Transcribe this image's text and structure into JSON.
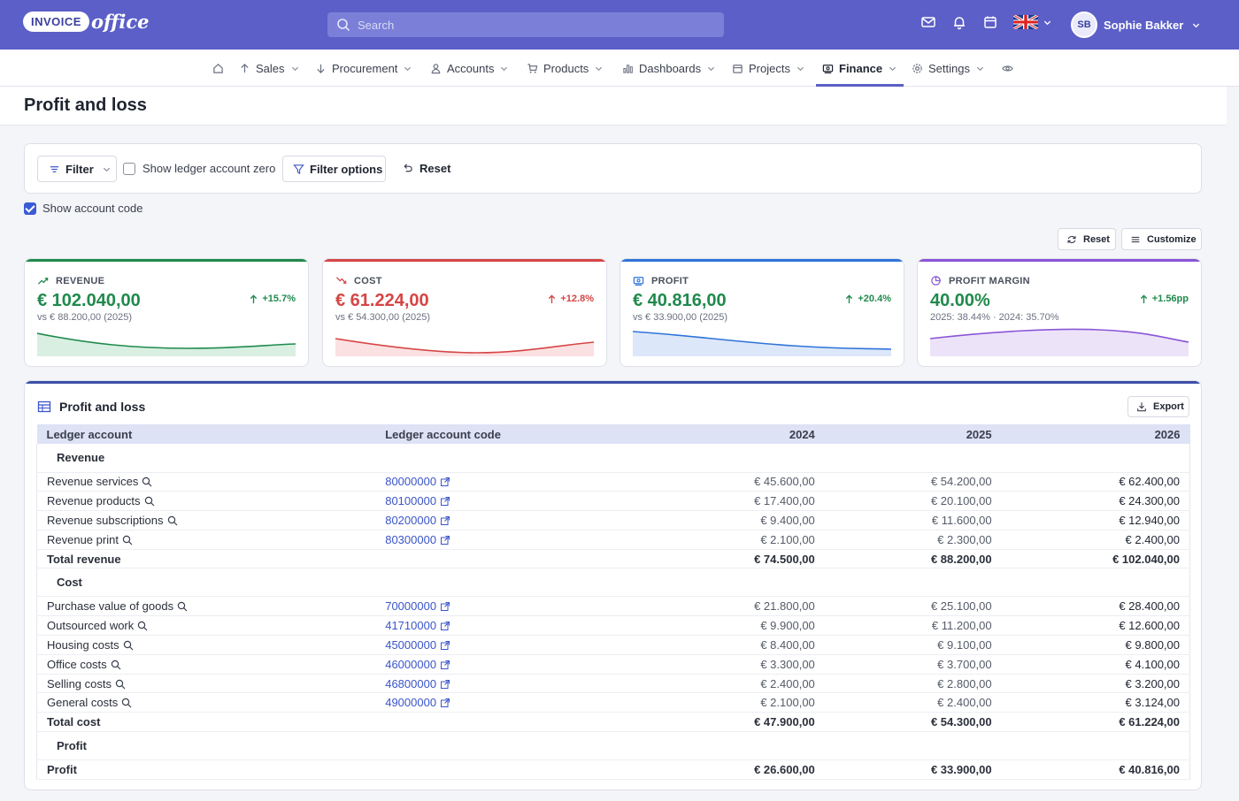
{
  "app": {
    "logo_text": "INVOICE",
    "logo_suffix": "office"
  },
  "search": {
    "placeholder": "Search"
  },
  "user": {
    "initials": "SB",
    "name": "Sophie Bakker"
  },
  "nav": {
    "items": [
      {
        "label": "Sales"
      },
      {
        "label": "Procurement"
      },
      {
        "label": "Accounts"
      },
      {
        "label": "Products"
      },
      {
        "label": "Dashboards"
      },
      {
        "label": "Projects"
      },
      {
        "label": "Finance"
      },
      {
        "label": "Settings"
      }
    ],
    "active": "Finance"
  },
  "page": {
    "title": "Profit and loss"
  },
  "filters": {
    "filter_label": "Filter",
    "show_zero_label": "Show ledger account zero",
    "show_zero_checked": false,
    "filter_options_label": "Filter options",
    "reset_label": "Reset",
    "show_code_label": "Show account code",
    "show_code_checked": true
  },
  "kpi_toolbar": {
    "reset_label": "Reset",
    "customize_label": "Customize"
  },
  "kpis": [
    {
      "label": "REVENUE",
      "value": "€ 102.040,00",
      "change": "+15.7%",
      "sub": "vs € 88.200,00 (2025)",
      "color": "#1f8a4c",
      "fill": "#d9efe2",
      "icon": "trending-up-icon"
    },
    {
      "label": "COST",
      "value": "€ 61.224,00",
      "change": "+12.8%",
      "sub": "vs € 54.300,00 (2025)",
      "color": "#d64545",
      "fill": "#fbe1e2",
      "icon": "trending-down-icon"
    },
    {
      "label": "PROFIT",
      "value": "€ 40.816,00",
      "change": "+20.4%",
      "sub": "vs € 33.900,00 (2025)",
      "color": "#2f73d9",
      "fill": "#dce8fa",
      "icon": "money-icon"
    },
    {
      "label": "PROFIT MARGIN",
      "value": "40.00%",
      "change": "+1.56pp",
      "sub": "2025: 38.44% · 2024: 35.70%",
      "color": "#8a55d6",
      "fill": "#ece3f9",
      "icon": "pie-icon"
    }
  ],
  "table": {
    "title": "Profit and loss",
    "export_label": "Export",
    "columns": [
      "Ledger account",
      "Ledger account code",
      "2024",
      "2025",
      "2026"
    ],
    "sections": [
      {
        "name": "Revenue",
        "rows": [
          {
            "account": "Revenue services",
            "code": "80000000",
            "v2024": "€ 45.600,00",
            "v2025": "€ 54.200,00",
            "v2026": "€ 62.400,00"
          },
          {
            "account": "Revenue products",
            "code": "80100000",
            "v2024": "€ 17.400,00",
            "v2025": "€ 20.100,00",
            "v2026": "€ 24.300,00"
          },
          {
            "account": "Revenue subscriptions",
            "code": "80200000",
            "v2024": "€ 9.400,00",
            "v2025": "€ 11.600,00",
            "v2026": "€ 12.940,00"
          },
          {
            "account": "Revenue print",
            "code": "80300000",
            "v2024": "€ 2.100,00",
            "v2025": "€ 2.300,00",
            "v2026": "€ 2.400,00"
          }
        ],
        "total": {
          "label": "Total revenue",
          "v2024": "€ 74.500,00",
          "v2025": "€ 88.200,00",
          "v2026": "€ 102.040,00"
        }
      },
      {
        "name": "Cost",
        "rows": [
          {
            "account": "Purchase value of goods",
            "code": "70000000",
            "v2024": "€ 21.800,00",
            "v2025": "€ 25.100,00",
            "v2026": "€ 28.400,00"
          },
          {
            "account": "Outsourced work",
            "code": "41710000",
            "v2024": "€ 9.900,00",
            "v2025": "€ 11.200,00",
            "v2026": "€ 12.600,00"
          },
          {
            "account": "Housing costs",
            "code": "45000000",
            "v2024": "€ 8.400,00",
            "v2025": "€ 9.100,00",
            "v2026": "€ 9.800,00"
          },
          {
            "account": "Office costs",
            "code": "46000000",
            "v2024": "€ 3.300,00",
            "v2025": "€ 3.700,00",
            "v2026": "€ 4.100,00"
          },
          {
            "account": "Selling costs",
            "code": "46800000",
            "v2024": "€ 2.400,00",
            "v2025": "€ 2.800,00",
            "v2026": "€ 3.200,00"
          },
          {
            "account": "General costs",
            "code": "49000000",
            "v2024": "€ 2.100,00",
            "v2025": "€ 2.400,00",
            "v2026": "€ 3.124,00"
          }
        ],
        "total": {
          "label": "Total cost",
          "v2024": "€ 47.900,00",
          "v2025": "€ 54.300,00",
          "v2026": "€ 61.224,00"
        }
      },
      {
        "name": "Profit",
        "rows": [],
        "total": {
          "label": "Profit",
          "v2024": "€ 26.600,00",
          "v2025": "€ 33.900,00",
          "v2026": "€ 40.816,00"
        }
      }
    ]
  }
}
